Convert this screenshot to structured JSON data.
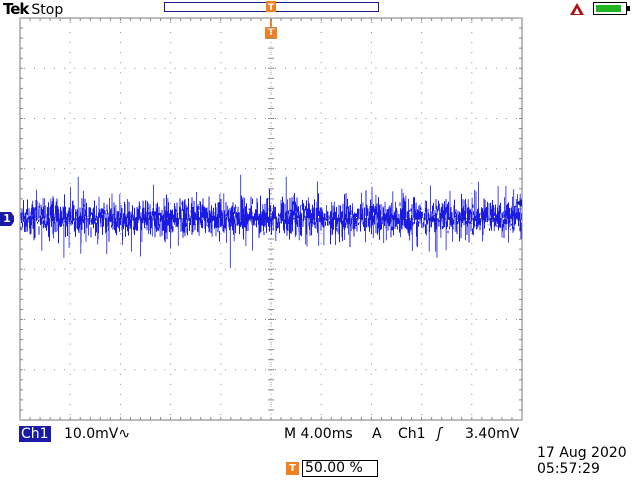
{
  "header": {
    "brand": "Tek",
    "acquisition_status": "Stop",
    "trigger_marker_label": "T",
    "trigger_status_icon": "trigger-arrow-icon",
    "battery_level": 0.9
  },
  "channel": {
    "marker_label": "1",
    "color": "#1a1ae6",
    "name": "Ch1",
    "scale": "10.0mV",
    "coupling_icon": "ac-coupling-icon",
    "coupling_glyph": "∿"
  },
  "horizontal": {
    "timebase": "M 4.00ms"
  },
  "trigger": {
    "mode": "A",
    "source": "Ch1",
    "slope_icon": "rising-edge-icon",
    "slope_glyph": "ʃ",
    "level": "3.40mV",
    "position_label": "T",
    "position_value": "50.00 %"
  },
  "datetime": {
    "date": "17 Aug 2020",
    "time": "05:57:29"
  },
  "colors": {
    "trace": "#1a1ae6",
    "trigger_orange": "#f08020",
    "channel_box": "#1a1aa8",
    "battery_green": "#22b522"
  }
}
